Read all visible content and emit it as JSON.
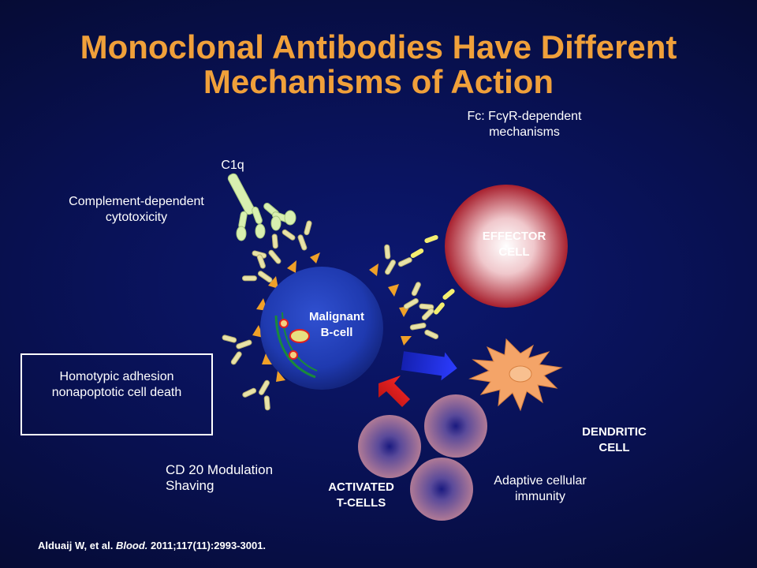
{
  "title": {
    "line1": "Monoclonal Antibodies Have Different",
    "line2": "Mechanisms of Action"
  },
  "labels": {
    "fc_line1": "Fc: FcγR-dependent",
    "fc_line2": "mechanisms",
    "c1q": "C1q",
    "cdc_line1": "Complement-dependent",
    "cdc_line2": "cytotoxicity",
    "effector_line1": "EFFECTOR",
    "effector_line2": "CELL",
    "bcell_line1": "Malignant",
    "bcell_line2": "B-cell",
    "homotypic_line1": "Homotypic  adhesion",
    "homotypic_line2": "nonapoptotic  cell death",
    "dendritic_line1": "DENDRITIC",
    "dendritic_line2": "CELL",
    "cd20_line1": "CD 20 Modulation",
    "cd20_line2": "Shaving",
    "tcells_line1": "ACTIVATED",
    "tcells_line2": "T-CELLS",
    "adaptive_line1": "Adaptive cellular",
    "adaptive_line2": "immunity"
  },
  "citation": {
    "authors": "Alduaij W, et al. ",
    "journal": "Blood.",
    "details": "  2011;117(11):2993-3001."
  },
  "colors": {
    "title": "#f0a03a",
    "bcell": "#1f3ab0",
    "effector": "#b02a3a",
    "antibody": "#e8e2a8",
    "arrow_blue": "#1d2ee0",
    "arrow_red": "#e01d1d",
    "dendritic": "#f4a468"
  }
}
